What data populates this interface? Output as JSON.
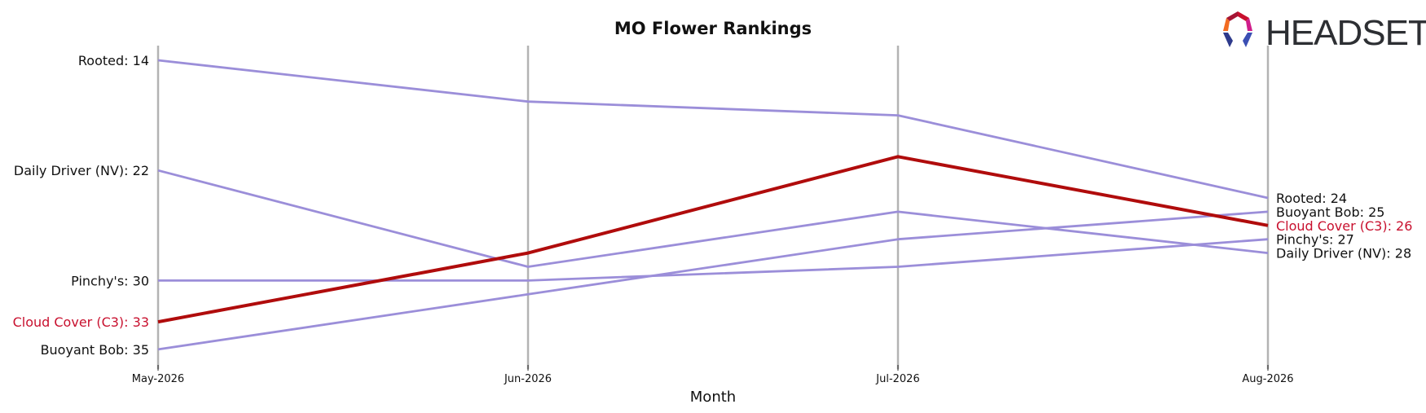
{
  "chart_data": {
    "type": "line",
    "title": "MO Flower Rankings",
    "xlabel": "Month",
    "ylabel": "",
    "x": [
      "May-2026",
      "Jun-2026",
      "Jul-2026",
      "Aug-2026"
    ],
    "y_inverted": true,
    "ylim": [
      13,
      35.5
    ],
    "grid": "vertical",
    "series": [
      {
        "name": "Rooted",
        "values": [
          14,
          17,
          18,
          24
        ],
        "highlight": false
      },
      {
        "name": "Daily Driver (NV)",
        "values": [
          22,
          29,
          25,
          28
        ],
        "highlight": false
      },
      {
        "name": "Pinchy's",
        "values": [
          30,
          30,
          29,
          27
        ],
        "highlight": false
      },
      {
        "name": "Cloud Cover (C3)",
        "values": [
          33,
          28,
          21,
          26
        ],
        "highlight": true
      },
      {
        "name": "Buoyant Bob",
        "values": [
          35,
          31,
          27,
          25
        ],
        "highlight": false
      }
    ],
    "left_labels": [
      "Rooted: 14",
      "Daily Driver (NV): 22",
      "Pinchy's: 30",
      "Cloud Cover (C3): 33",
      "Buoyant Bob: 35"
    ],
    "right_labels": [
      "Rooted: 24",
      "Buoyant Bob: 25",
      "Cloud Cover (C3): 26",
      "Pinchy's: 27",
      "Daily Driver (NV): 28"
    ],
    "colors": {
      "normal": "#9b8ed9",
      "highlight": "#b00c0c",
      "highlight_text": "#c8102e",
      "text": "#111111",
      "gridline": "#b3b3b3"
    }
  },
  "logo": {
    "text": "HEADSET",
    "icon": "headset-logo-icon"
  }
}
